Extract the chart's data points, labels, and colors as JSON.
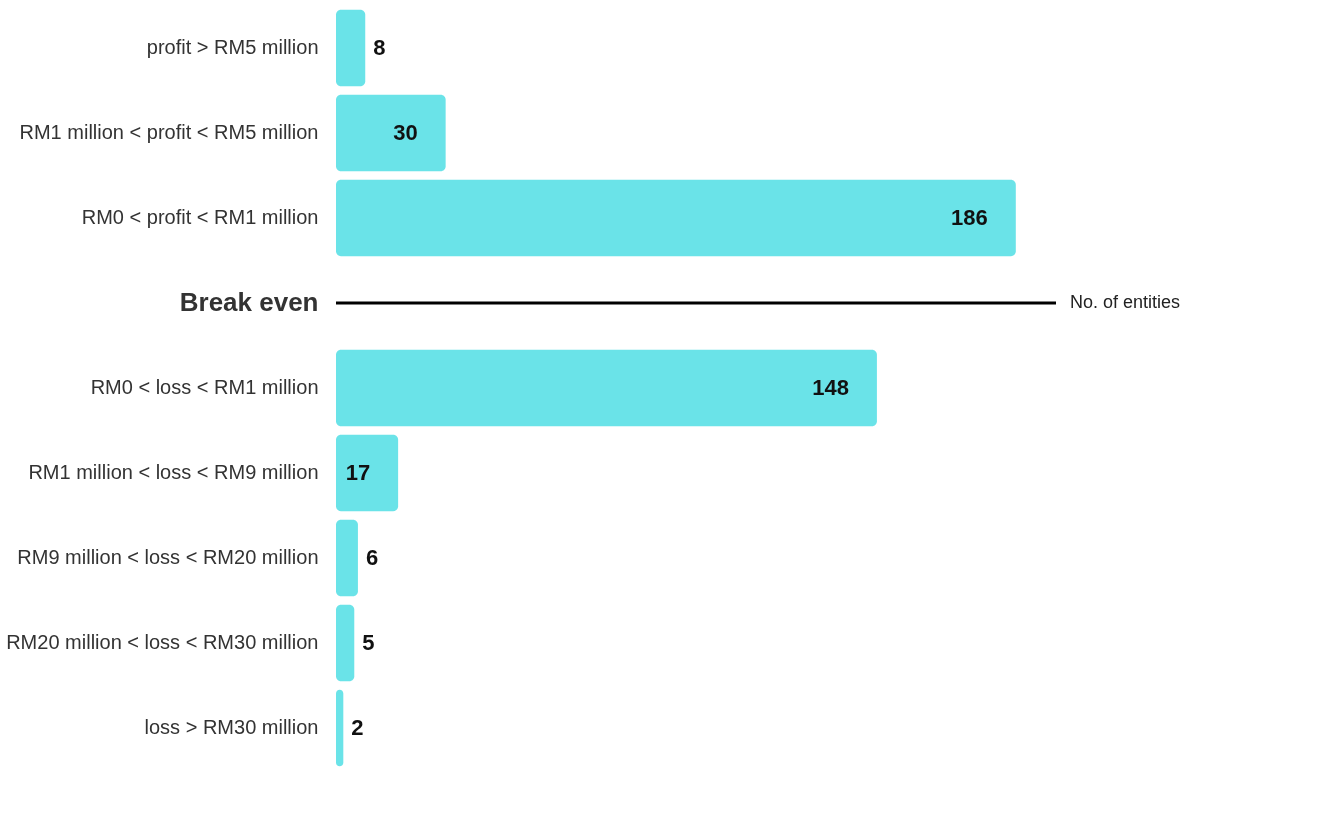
{
  "chart_data": {
    "type": "bar",
    "orientation": "horizontal",
    "categories": [
      "profit > RM5 million",
      "RM1 million < profit < RM5 million",
      "RM0 < profit < RM1 million",
      "Break even",
      "RM0 < loss < RM1 million",
      "RM1 million < loss < RM9 million",
      "RM9 million < loss < RM20 million",
      "RM20 million < loss < RM30 million",
      "loss > RM30 million"
    ],
    "values": [
      8,
      30,
      186,
      null,
      148,
      17,
      6,
      5,
      2
    ],
    "color": "#6ae3e8",
    "xlim": [
      0,
      197
    ],
    "data_labels": true,
    "grid": false,
    "tick_labels": "y",
    "ref_lines": [
      {
        "axis": "y",
        "value": "Break even",
        "label": "No. of entities",
        "color": "#000000"
      }
    ]
  }
}
